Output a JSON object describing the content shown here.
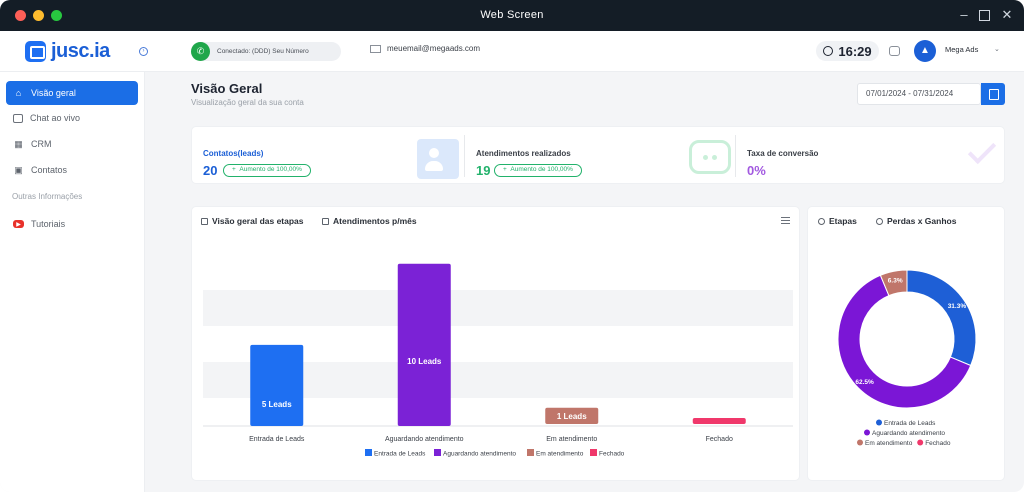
{
  "window": {
    "title": "Web Screen"
  },
  "app": {
    "logo_text": "jusc.ia"
  },
  "header": {
    "connection_status": "Conectado: (DDD) Seu Número",
    "email": "meuemail@megaads.com",
    "clock": "16:29",
    "user_name": "Mega Ads"
  },
  "sidebar": {
    "items": [
      {
        "label": "Visão geral",
        "icon": "home-icon",
        "active": true
      },
      {
        "label": "Chat ao vivo",
        "icon": "chat-icon"
      },
      {
        "label": "CRM",
        "icon": "grid-icon"
      },
      {
        "label": "Contatos",
        "icon": "contacts-icon"
      }
    ],
    "section_title": "Outras Informações",
    "extra_items": [
      {
        "label": "Tutoriais",
        "icon": "youtube-icon"
      }
    ]
  },
  "page": {
    "title": "Visão Geral",
    "subtitle": "Visualização geral da sua conta",
    "date_range": "07/01/2024 - 07/31/2024"
  },
  "stats": [
    {
      "label": "Contatos(leads)",
      "value": "20",
      "badge": "Aumento de 100,00%",
      "color": "#1b5fd6"
    },
    {
      "label": "Atendimentos realizados",
      "value": "19",
      "badge": "Aumento de 100,00%",
      "color": "#22b26b"
    },
    {
      "label": "Taxa de conversão",
      "value": "0%",
      "color": "#a259e0"
    }
  ],
  "bar_card": {
    "tabs": [
      "Visão geral das etapas",
      "Atendimentos p/mês"
    ]
  },
  "donut_card": {
    "tabs": [
      "Etapas",
      "Perdas x Ganhos"
    ]
  },
  "chart_data": [
    {
      "type": "bar",
      "categories": [
        "Entrada de Leads",
        "Aguardando atendimento",
        "Em atendimento",
        "Fechado"
      ],
      "values": [
        5,
        10,
        1,
        0
      ],
      "data_labels": [
        "5 Leads",
        "10 Leads",
        "1 Leads",
        ""
      ],
      "colors": [
        "#1e6ff2",
        "#7b22d6",
        "#c0766a",
        "#f0386b"
      ],
      "legend": [
        "Entrada de Leads",
        "Aguardando atendimento",
        "Em atendimento",
        "Fechado"
      ],
      "legend_position": "bottom",
      "ylim": [
        0,
        10.6
      ],
      "grid": true
    },
    {
      "type": "pie",
      "variant": "donut",
      "labels": [
        "Entrada de Leads",
        "Aguardando atendimento",
        "Em atendimento",
        "Fechado"
      ],
      "values": [
        31.3,
        62.5,
        6.3,
        0
      ],
      "data_labels": [
        "31.3%",
        "62.5%",
        "6.3%",
        ""
      ],
      "colors": [
        "#1e5fd6",
        "#7b16d6",
        "#c0766a",
        "#f0386b"
      ],
      "legend_position": "bottom"
    }
  ]
}
